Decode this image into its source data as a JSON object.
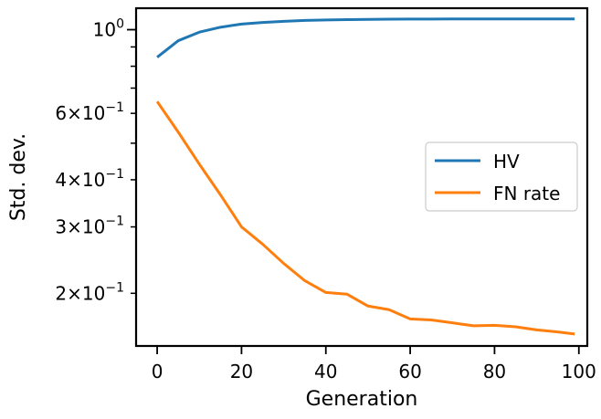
{
  "chart_data": {
    "type": "line",
    "xlabel": "Generation",
    "ylabel": "Std. dev.",
    "xlim": [
      -5,
      102
    ],
    "ylim": [
      0.145,
      1.14
    ],
    "yscale": "log",
    "grid": false,
    "legend_position": "center-right",
    "x_ticks": [
      {
        "value": 0,
        "label": "0"
      },
      {
        "value": 20,
        "label": "20"
      },
      {
        "value": 40,
        "label": "40"
      },
      {
        "value": 60,
        "label": "60"
      },
      {
        "value": 80,
        "label": "80"
      },
      {
        "value": 100,
        "label": "100"
      }
    ],
    "y_major_ticks": [
      {
        "value": 1.0,
        "base": "10",
        "exp": "0"
      }
    ],
    "y_minor_ticks": [
      {
        "value": 0.2,
        "mant": "2",
        "base": "10",
        "exp": "−1"
      },
      {
        "value": 0.3,
        "mant": "3",
        "base": "10",
        "exp": "−1"
      },
      {
        "value": 0.4,
        "mant": "4",
        "base": "10",
        "exp": "−1"
      },
      {
        "value": 0.5,
        "mant": "",
        "base": "",
        "exp": ""
      },
      {
        "value": 0.6,
        "mant": "6",
        "base": "10",
        "exp": "−1"
      },
      {
        "value": 0.7,
        "mant": "",
        "base": "",
        "exp": ""
      },
      {
        "value": 0.8,
        "mant": "",
        "base": "",
        "exp": ""
      },
      {
        "value": 0.9,
        "mant": "",
        "base": "",
        "exp": ""
      }
    ],
    "x": [
      0,
      5,
      10,
      15,
      20,
      25,
      30,
      35,
      40,
      45,
      50,
      55,
      60,
      65,
      70,
      75,
      80,
      85,
      90,
      95,
      99
    ],
    "series": [
      {
        "name": "HV",
        "color": "#1f77b4",
        "values": [
          0.845,
          0.935,
          0.985,
          1.015,
          1.035,
          1.045,
          1.052,
          1.058,
          1.061,
          1.063,
          1.065,
          1.066,
          1.067,
          1.067,
          1.068,
          1.068,
          1.068,
          1.068,
          1.068,
          1.068,
          1.068
        ]
      },
      {
        "name": "FN rate",
        "color": "#ff7f0e",
        "values": [
          0.645,
          0.535,
          0.44,
          0.365,
          0.3,
          0.27,
          0.24,
          0.216,
          0.201,
          0.199,
          0.185,
          0.181,
          0.171,
          0.17,
          0.167,
          0.164,
          0.1645,
          0.163,
          0.16,
          0.158,
          0.156
        ]
      }
    ]
  }
}
